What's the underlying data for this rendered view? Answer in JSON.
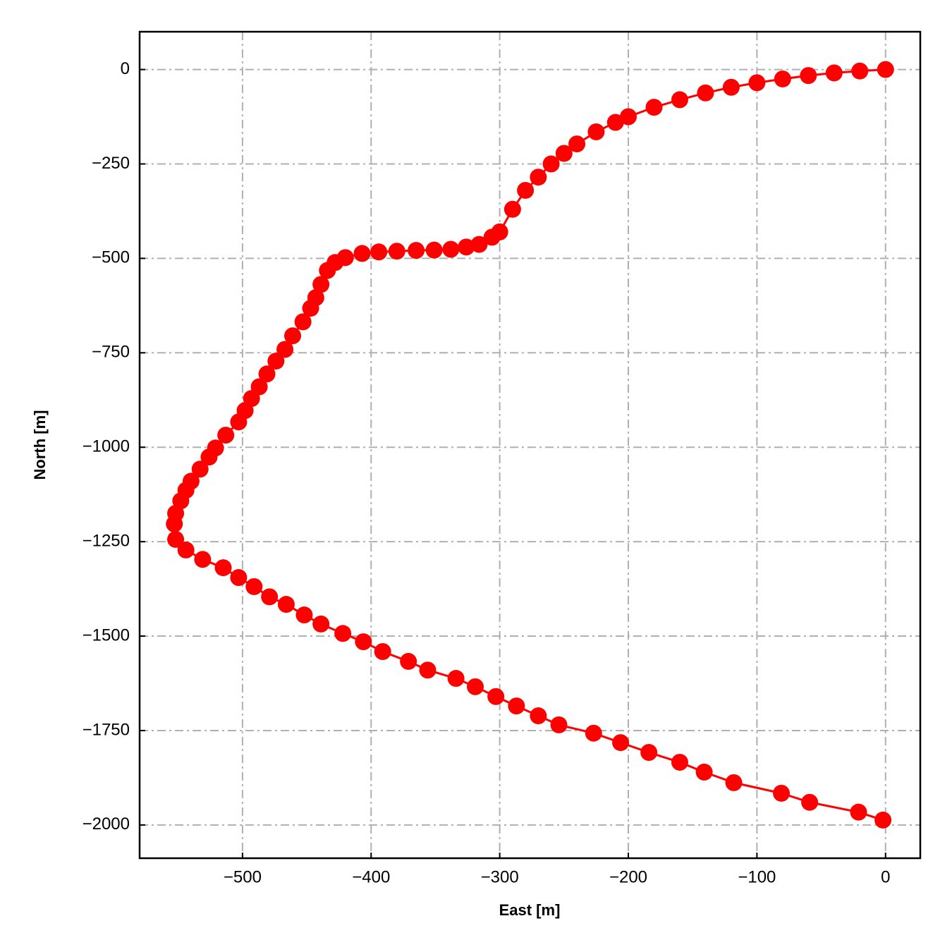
{
  "chart_data": {
    "type": "line",
    "xlabel": "East [m]",
    "ylabel": "North [m]",
    "x": [
      0,
      -20,
      -40,
      -60,
      -80,
      -100,
      -120,
      -140,
      -160,
      -180,
      -200,
      -210,
      -225,
      -240,
      -250,
      -260,
      -270,
      -280,
      -290,
      -300,
      -306,
      -316,
      -326,
      -338,
      -351,
      -365,
      -380,
      -394,
      -407,
      -420,
      -428,
      -434,
      -439,
      -443,
      -447,
      -453,
      -461,
      -467,
      -474,
      -481,
      -487,
      -493,
      -498,
      -503,
      -513,
      -521,
      -526,
      -533,
      -540,
      -544,
      -548,
      -552,
      -553,
      -552,
      -544,
      -531,
      -515,
      -503,
      -491,
      -479,
      -466,
      -452,
      -439,
      -422,
      -406,
      -391,
      -371,
      -356,
      -334,
      -319,
      -303,
      -287,
      -270,
      -254,
      -227,
      -206,
      -184,
      -160,
      -141,
      -118,
      -81,
      -59,
      -21,
      -2
    ],
    "series": [
      {
        "color": "#ff0000",
        "values": [
          0,
          -4,
          -9,
          -16,
          -25,
          -35,
          -47,
          -62,
          -80,
          -100,
          -125,
          -140,
          -165,
          -197,
          -222,
          -250,
          -285,
          -320,
          -370,
          -430,
          -444,
          -463,
          -470,
          -476,
          -478,
          -479,
          -481,
          -483,
          -487,
          -498,
          -511,
          -532,
          -569,
          -604,
          -632,
          -668,
          -705,
          -741,
          -772,
          -806,
          -840,
          -871,
          -903,
          -933,
          -968,
          -1002,
          -1026,
          -1058,
          -1090,
          -1114,
          -1142,
          -1175,
          -1203,
          -1244,
          -1272,
          -1297,
          -1319,
          -1345,
          -1369,
          -1396,
          -1416,
          -1444,
          -1468,
          -1493,
          -1515,
          -1541,
          -1567,
          -1590,
          -1612,
          -1634,
          -1660,
          -1685,
          -1711,
          -1735,
          -1757,
          -1782,
          -1808,
          -1834,
          -1860,
          -1888,
          -1916,
          -1940,
          -1966,
          -1987
        ]
      }
    ],
    "markers": true,
    "grid": true,
    "xlim": [
      -580,
      27
    ],
    "xticks": [
      {
        "value": -500,
        "label": "−500"
      },
      {
        "value": -400,
        "label": "−400"
      },
      {
        "value": -300,
        "label": "−300"
      },
      {
        "value": -200,
        "label": "−200"
      },
      {
        "value": -100,
        "label": "−100"
      },
      0
    ],
    "ylim": [
      -2088,
      100
    ],
    "yticks": [
      0,
      {
        "value": -250,
        "label": "−250"
      },
      {
        "value": -500,
        "label": "−500"
      },
      {
        "value": -750,
        "label": "−750"
      },
      {
        "value": -1000,
        "label": "−1000"
      },
      {
        "value": -1250,
        "label": "−1250"
      },
      {
        "value": -1500,
        "label": "−1500"
      },
      {
        "value": -1750,
        "label": "−1750"
      },
      {
        "value": -2000,
        "label": "−2000"
      }
    ]
  }
}
